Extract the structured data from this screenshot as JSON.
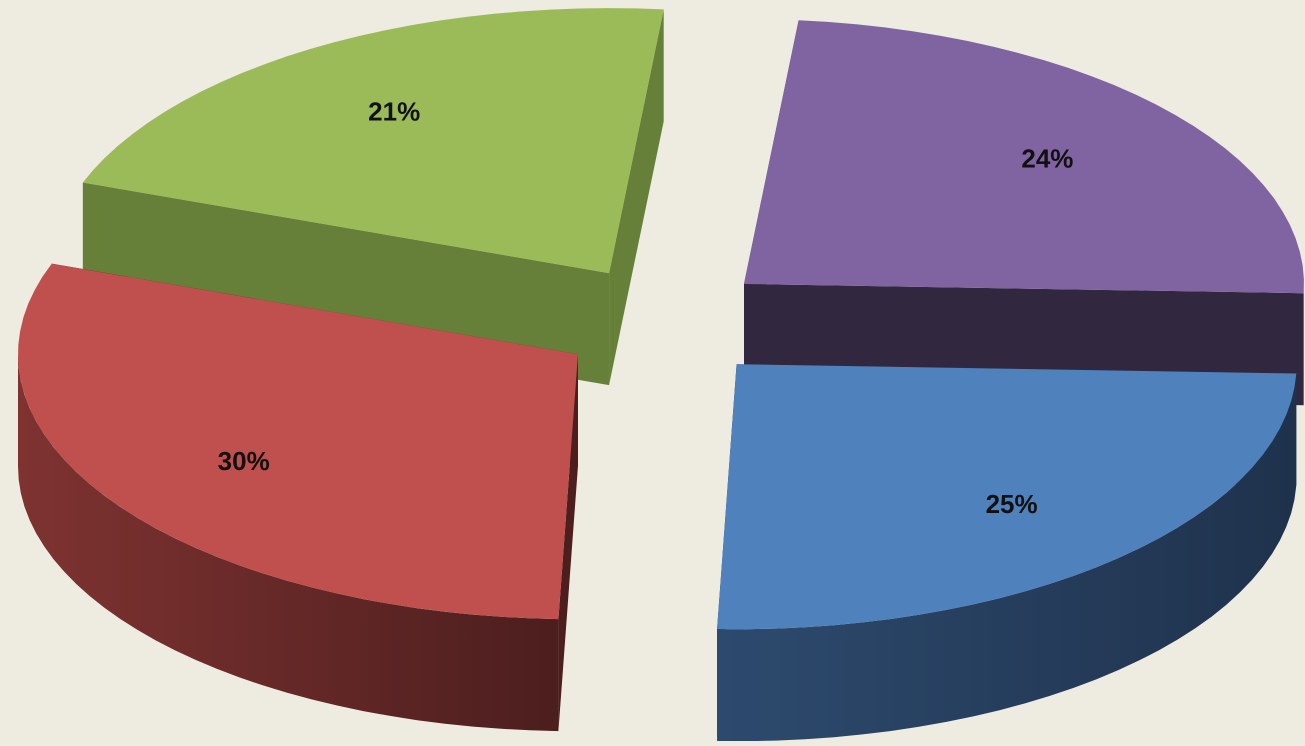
{
  "chart_data": {
    "type": "pie",
    "style": "3d-exploded",
    "title": "",
    "legend": "none",
    "slices": [
      {
        "value": 25,
        "label": "25%",
        "color": "#4f81bd",
        "side_dark": "#1f324c",
        "side_light": "#2d4a6e"
      },
      {
        "value": 30,
        "label": "30%",
        "color": "#c0504d",
        "side_dark": "#4c1e1e",
        "side_light": "#7e3331"
      },
      {
        "value": 21,
        "label": "21%",
        "color": "#9bbb59",
        "side_dark": "#66803a",
        "side_light": "#86a64c"
      },
      {
        "value": 24,
        "label": "24%",
        "color": "#8064a2",
        "side_dark": "#312840",
        "side_light": "#453859"
      }
    ]
  }
}
